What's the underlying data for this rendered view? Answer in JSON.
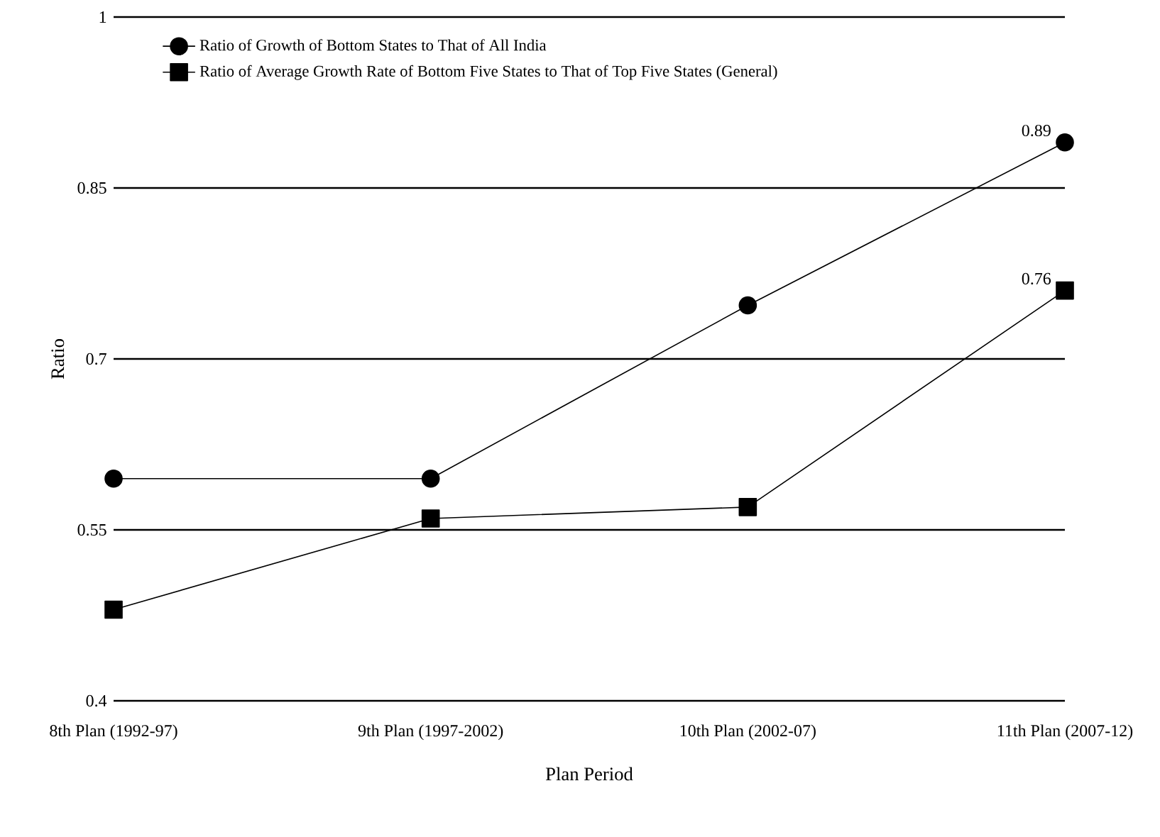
{
  "chart_data": {
    "type": "line",
    "xlabel": "Plan Period",
    "ylabel": "Ratio",
    "categories": [
      "8th Plan (1992-97)",
      "9th Plan (1997-2002)",
      "10th Plan (2002-07)",
      "11th Plan (2007-12)"
    ],
    "series": [
      {
        "name": "Ratio of Growth of Bottom States to That of All India",
        "color": "#000000",
        "marker": "circle",
        "values": [
          0.595,
          0.595,
          0.747,
          0.89
        ],
        "value_labels": [
          null,
          null,
          null,
          "0.89"
        ]
      },
      {
        "name": "Ratio of Average Growth Rate of Bottom Five States to  That of Top Five States (General)",
        "color": "#000000",
        "marker": "square",
        "values": [
          0.48,
          0.56,
          0.57,
          0.76
        ],
        "value_labels": [
          null,
          null,
          null,
          "0.76"
        ]
      }
    ],
    "ylim": [
      0.4,
      1
    ],
    "yticks": [
      0.4,
      0.55,
      0.7,
      0.85,
      1
    ],
    "grid": "y",
    "legend": "top left"
  }
}
